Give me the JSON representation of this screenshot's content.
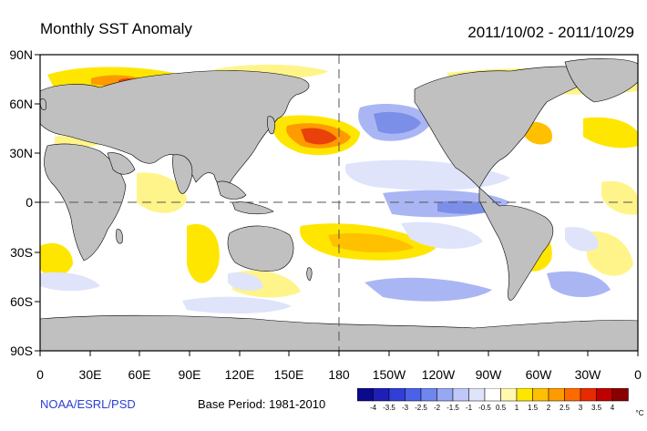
{
  "header": {
    "title": "Monthly SST Anomaly",
    "period": "2011/10/02 - 2011/10/29"
  },
  "axes": {
    "lat_labels": [
      "90N",
      "60N",
      "30N",
      "0",
      "30S",
      "60S",
      "90S"
    ],
    "lon_labels": [
      "0",
      "30E",
      "60E",
      "90E",
      "120E",
      "150E",
      "180",
      "150W",
      "120W",
      "90W",
      "60W",
      "30W",
      "0"
    ]
  },
  "footer": {
    "credit": "NOAA/ESRL/PSD",
    "base_period": "Base Period: 1981-2010"
  },
  "colorbar": {
    "labels": [
      "-4",
      "-3.5",
      "-3",
      "-2.5",
      "-2",
      "-1.5",
      "-1",
      "-0.5",
      "0.5",
      "1",
      "1.5",
      "2",
      "2.5",
      "3",
      "3.5",
      "4"
    ],
    "unit": "°C",
    "colors": [
      "#0a0a8c",
      "#1f1fb8",
      "#2f3fd8",
      "#4a62e8",
      "#6f86ee",
      "#97a8f2",
      "#bfc8f7",
      "#dfe4fb",
      "#ffffff",
      "#fff8b0",
      "#ffe600",
      "#ffc000",
      "#ff9a00",
      "#ff6a00",
      "#e82a00",
      "#c00000",
      "#8a0000"
    ]
  },
  "palette": {
    "land": "#c0c0c0",
    "ocean": "#ffffff",
    "warm_light": "#fff48a",
    "warm": "#ffd400",
    "warm_strong": "#ff9a00",
    "hot": "#e8420a",
    "cool_light": "#dfe4fb",
    "cool": "#aab6f3",
    "cool_strong": "#7b8fe8"
  }
}
